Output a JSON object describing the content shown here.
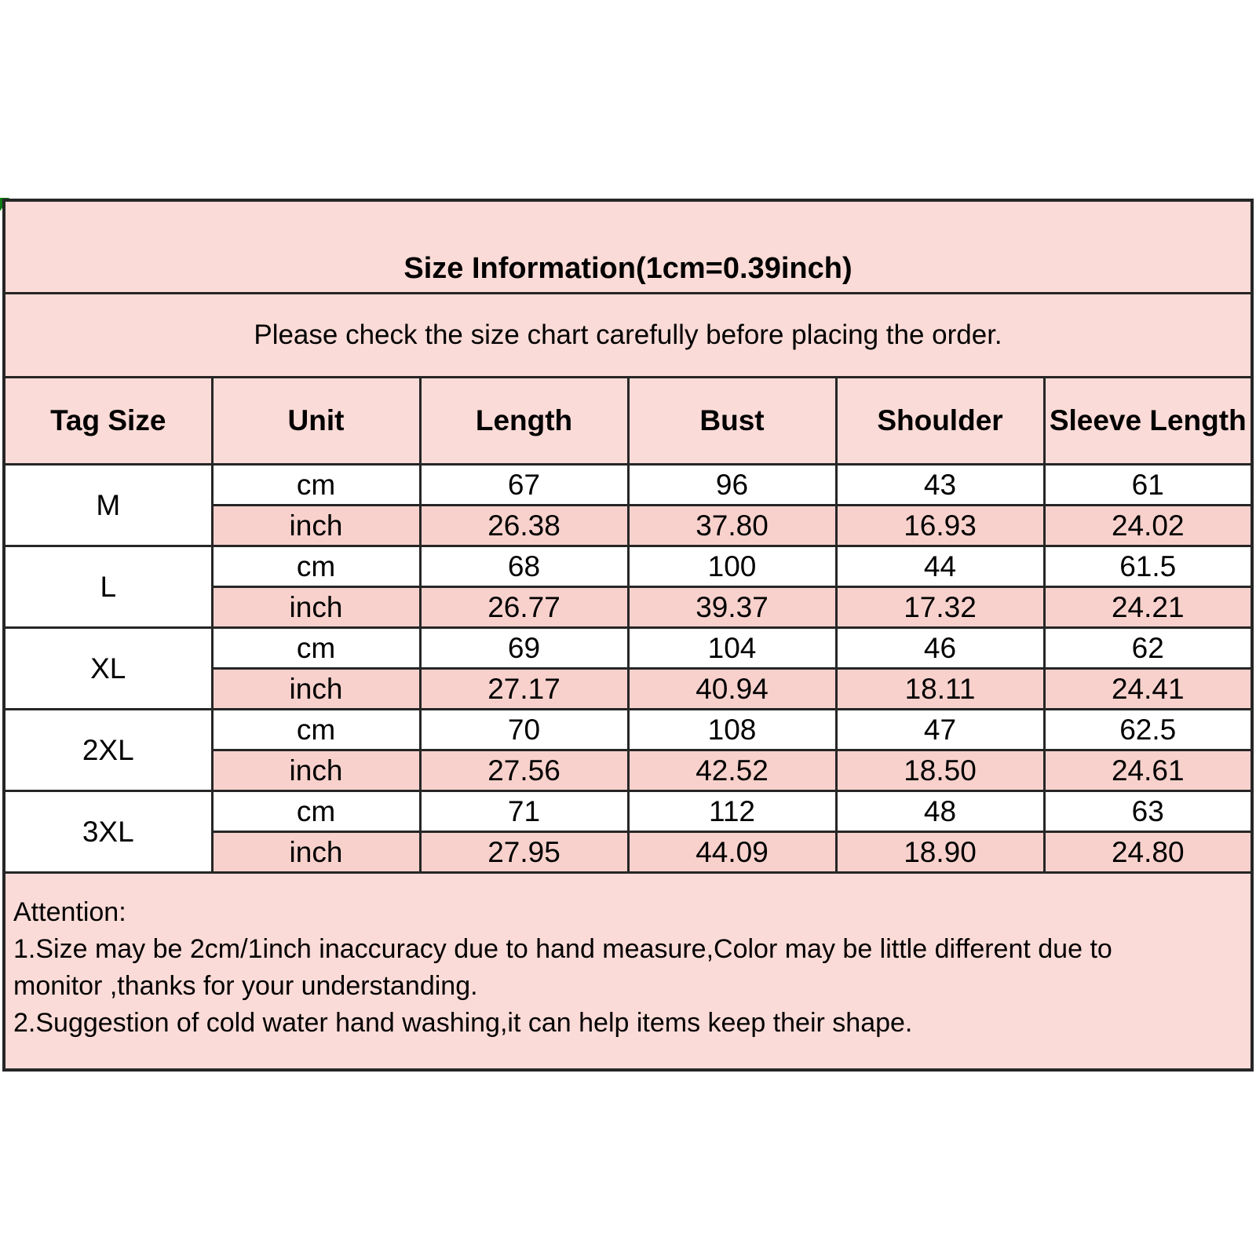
{
  "title": "Size Information(1cm=0.39inch)",
  "subtitle": "Please check the size chart carefully before placing the order.",
  "table": {
    "headers": [
      "Tag Size",
      "Unit",
      "Length",
      "Bust",
      "Shoulder",
      "Sleeve Length"
    ],
    "rows": [
      {
        "tag": "M",
        "cm": [
          "67",
          "96",
          "43",
          "61"
        ],
        "inch": [
          "26.38",
          "37.80",
          "16.93",
          "24.02"
        ]
      },
      {
        "tag": "L",
        "cm": [
          "68",
          "100",
          "44",
          "61.5"
        ],
        "inch": [
          "26.77",
          "39.37",
          "17.32",
          "24.21"
        ]
      },
      {
        "tag": "XL",
        "cm": [
          "69",
          "104",
          "46",
          "62"
        ],
        "inch": [
          "27.17",
          "40.94",
          "18.11",
          "24.41"
        ]
      },
      {
        "tag": "2XL",
        "cm": [
          "70",
          "108",
          "47",
          "62.5"
        ],
        "inch": [
          "27.56",
          "42.52",
          "18.50",
          "24.61"
        ]
      },
      {
        "tag": "3XL",
        "cm": [
          "71",
          "112",
          "48",
          "63"
        ],
        "inch": [
          "27.95",
          "44.09",
          "18.90",
          "24.80"
        ]
      }
    ]
  },
  "units": {
    "cm": "cm",
    "inch": "inch"
  },
  "attention": {
    "lines": [
      "Attention:",
      "1.Size may be 2cm/1inch inaccuracy due to hand measure,Color may be little different due to",
      "monitor ,thanks for your understanding.",
      "2.Suggestion of cold water hand washing,it can help items keep their shape."
    ]
  },
  "colors": {
    "panel_pink": "#fbdbd7",
    "inch_row_pink": "#f8d1cc",
    "border": "#262626",
    "corner_green": "#0c7c12",
    "text": "#000000",
    "page_background": "#ffffff"
  }
}
